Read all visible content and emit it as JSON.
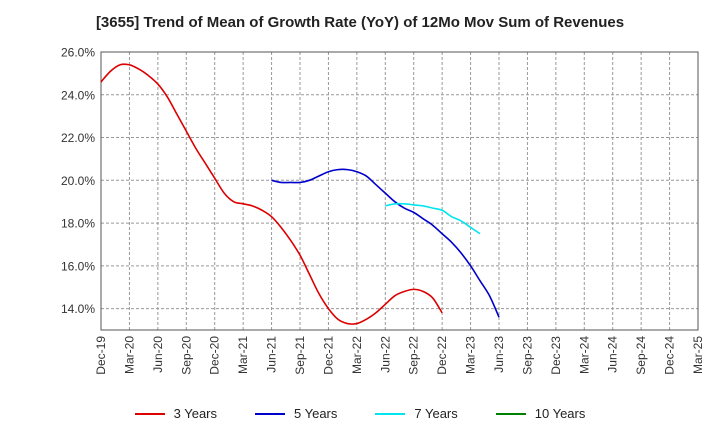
{
  "chart_data": {
    "type": "line",
    "title": "[3655]  Trend of Mean of Growth Rate (YoY) of 12Mo Mov Sum of Revenues",
    "xlabel": "",
    "ylabel": "",
    "ylim": [
      13.0,
      26.0
    ],
    "yticks": [
      14.0,
      16.0,
      18.0,
      20.0,
      22.0,
      24.0,
      26.0
    ],
    "ytick_labels": [
      "14.0%",
      "16.0%",
      "18.0%",
      "20.0%",
      "22.0%",
      "24.0%",
      "26.0%"
    ],
    "x_labels": [
      "Dec-19",
      "Mar-20",
      "Jun-20",
      "Sep-20",
      "Dec-20",
      "Mar-21",
      "Jun-21",
      "Sep-21",
      "Dec-21",
      "Mar-22",
      "Jun-22",
      "Sep-22",
      "Dec-22",
      "Mar-23",
      "Jun-23",
      "Sep-23",
      "Dec-23",
      "Mar-24",
      "Jun-24",
      "Sep-24",
      "Dec-24",
      "Mar-25"
    ],
    "grid": true,
    "legend_position": "bottom",
    "series": [
      {
        "name": "3 Years",
        "color": "#dd0000",
        "start_index": 0,
        "values": [
          24.6,
          25.1,
          25.4,
          25.4,
          25.2,
          24.9,
          24.5,
          23.9,
          23.1,
          22.3,
          21.5,
          20.8,
          20.1,
          19.4,
          19.0,
          18.9,
          18.8,
          18.6,
          18.3,
          17.8,
          17.2,
          16.5,
          15.6,
          14.7,
          14.0,
          13.5,
          13.3,
          13.3,
          13.5,
          13.8,
          14.2,
          14.6,
          14.8,
          14.9,
          14.8,
          14.5,
          13.8
        ]
      },
      {
        "name": "5 Years",
        "color": "#0000cc",
        "start_index": 18,
        "values": [
          20.0,
          19.9,
          19.9,
          19.9,
          20.0,
          20.2,
          20.4,
          20.5,
          20.5,
          20.4,
          20.2,
          19.8,
          19.4,
          19.0,
          18.7,
          18.5,
          18.2,
          17.9,
          17.5,
          17.1,
          16.6,
          16.0,
          15.3,
          14.6,
          13.6
        ]
      },
      {
        "name": "7 Years",
        "color": "#00e5ee",
        "start_index": 30,
        "values": [
          18.8,
          18.9,
          18.9,
          18.85,
          18.8,
          18.7,
          18.6,
          18.3,
          18.1,
          17.8,
          17.5
        ]
      },
      {
        "name": "10 Years",
        "color": "#008000",
        "start_index": 0,
        "values": []
      }
    ]
  }
}
